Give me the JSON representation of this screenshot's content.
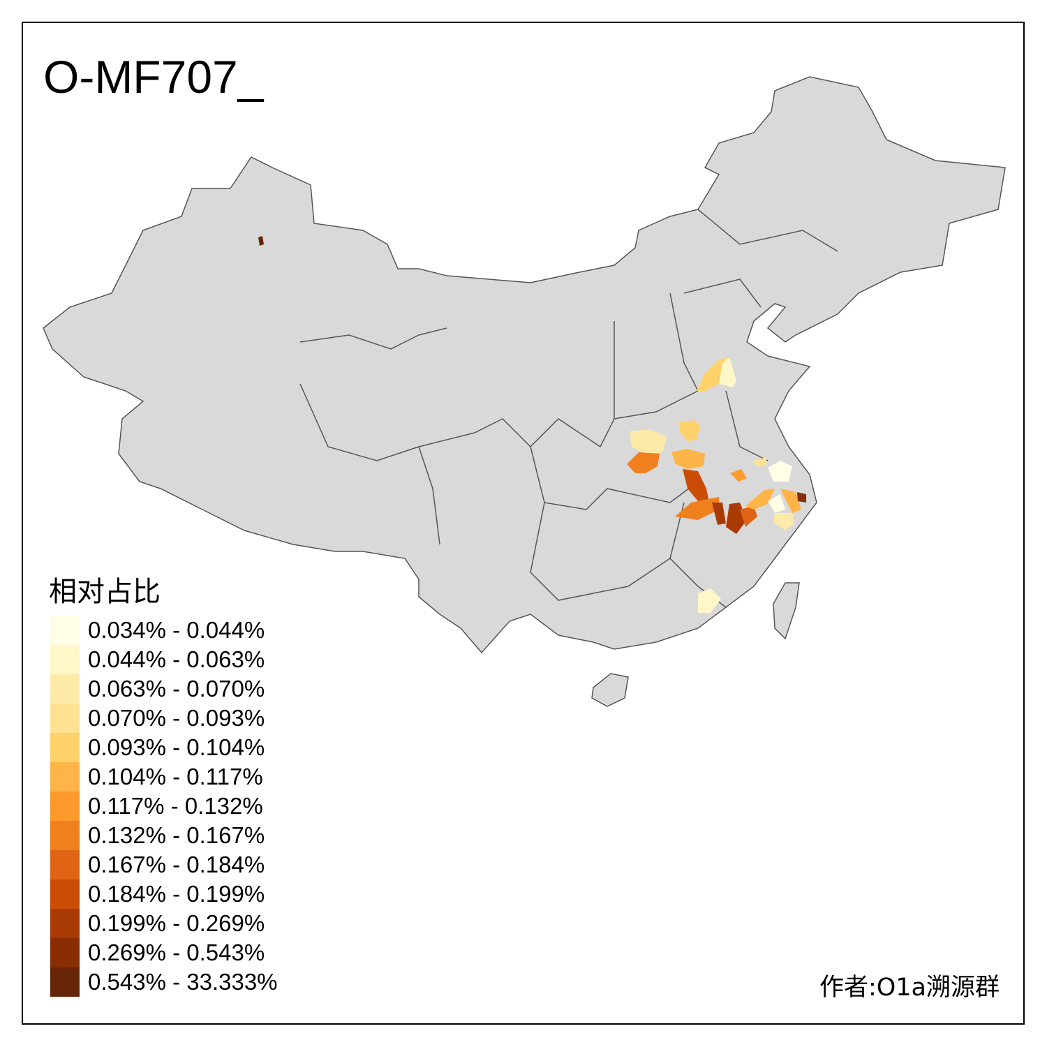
{
  "title": "O-MF707_",
  "legend": {
    "title": "相对占比",
    "items": [
      {
        "label": "0.034% - 0.044%",
        "color": "#fffde6"
      },
      {
        "label": "0.044% - 0.063%",
        "color": "#fff7c8"
      },
      {
        "label": "0.063% - 0.070%",
        "color": "#feeaa8"
      },
      {
        "label": "0.070% - 0.093%",
        "color": "#fee191"
      },
      {
        "label": "0.093% - 0.104%",
        "color": "#fed16a"
      },
      {
        "label": "0.104% - 0.117%",
        "color": "#feb446"
      },
      {
        "label": "0.117% - 0.132%",
        "color": "#fe9a2c"
      },
      {
        "label": "0.132% - 0.167%",
        "color": "#f0801e"
      },
      {
        "label": "0.167% - 0.184%",
        "color": "#df6413"
      },
      {
        "label": "0.184% - 0.199%",
        "color": "#cb4c05"
      },
      {
        "label": "0.199% - 0.269%",
        "color": "#a93a03"
      },
      {
        "label": "0.269% - 0.543%",
        "color": "#882d04"
      },
      {
        "label": "0.543% - 33.333%",
        "color": "#662506"
      }
    ]
  },
  "author": "作者:O1a溯源群",
  "colors": {
    "base_region": "#d9d9d9",
    "border": "#555555"
  }
}
